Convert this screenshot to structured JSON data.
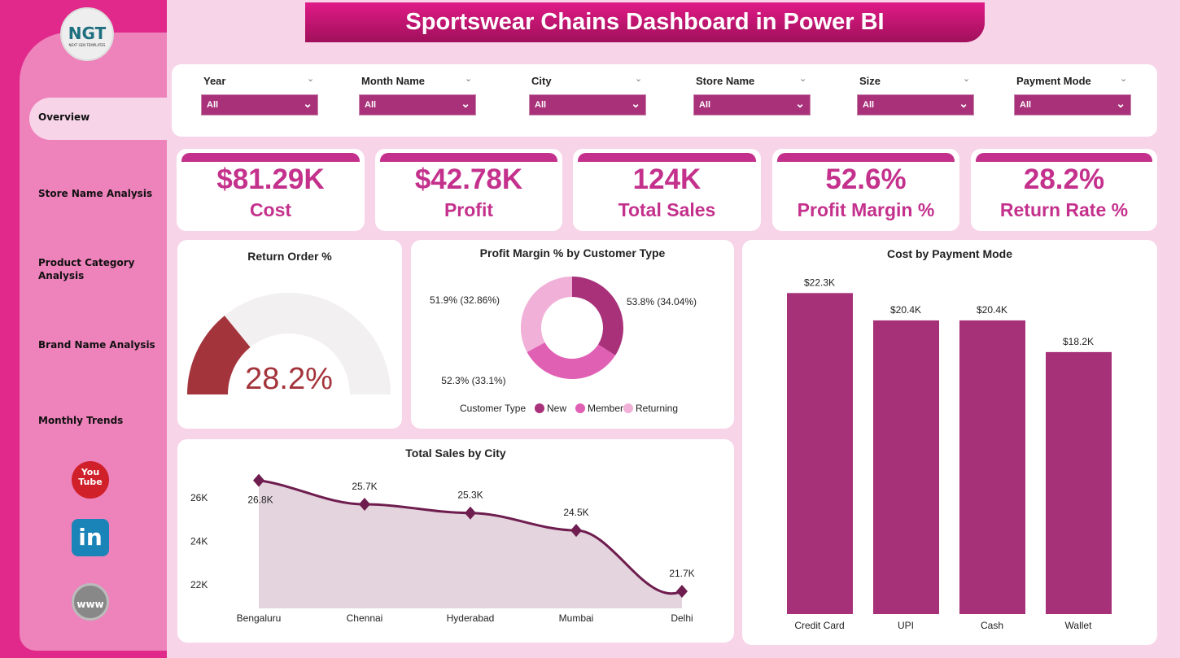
{
  "title": "Sportswear Chains Dashboard in Power BI",
  "logo": {
    "text": "NGT",
    "subtext": "NEXT GEN TEMPLATES"
  },
  "sidebar": {
    "items": [
      {
        "label": "Overview",
        "active": true
      },
      {
        "label": "Store Name Analysis"
      },
      {
        "label": "Product Category Analysis"
      },
      {
        "label": "Brand Name Analysis"
      },
      {
        "label": "Monthly Trends"
      }
    ],
    "social": [
      {
        "icon": "youtube-icon",
        "text": "You Tube"
      },
      {
        "icon": "linkedin-icon",
        "text": "in"
      },
      {
        "icon": "globe-icon",
        "text": "www"
      }
    ]
  },
  "filters": [
    {
      "label": "Year",
      "value": "All"
    },
    {
      "label": "Month Name",
      "value": "All"
    },
    {
      "label": "City",
      "value": "All"
    },
    {
      "label": "Store Name",
      "value": "All"
    },
    {
      "label": "Size",
      "value": "All"
    },
    {
      "label": "Payment Mode",
      "value": "All"
    }
  ],
  "kpis": [
    {
      "value": "$81.29K",
      "label": "Cost"
    },
    {
      "value": "$42.78K",
      "label": "Profit"
    },
    {
      "value": "124K",
      "label": "Total Sales"
    },
    {
      "value": "52.6%",
      "label": "Profit Margin %"
    },
    {
      "value": "28.2%",
      "label": "Return Rate %"
    }
  ],
  "colors": {
    "accent": "#c4318c",
    "bar": "#a63179",
    "line": "#6e1d4e",
    "gauge": "#a4343c"
  },
  "chart_data": [
    {
      "type": "gauge",
      "title": "Return Order %",
      "value": 28.2,
      "max": 100,
      "label": "28.2%"
    },
    {
      "type": "pie",
      "title": "Profit Margin % by Customer Type",
      "legend_title": "Customer Type",
      "categories": [
        "New",
        "Member",
        "Returning"
      ],
      "values": [
        53.8,
        52.3,
        51.9
      ],
      "shares": [
        34.04,
        33.1,
        32.86
      ],
      "labels": [
        "53.8% (34.04%)",
        "52.3% (33.1%)",
        "51.9% (32.86%)"
      ],
      "colors": [
        "#a8317a",
        "#e060b4",
        "#f0b0d8"
      ],
      "legend": "bottom"
    },
    {
      "type": "area",
      "title": "Total Sales by City",
      "categories": [
        "Bengaluru",
        "Chennai",
        "Hyderabad",
        "Mumbai",
        "Delhi"
      ],
      "values": [
        26.8,
        25.7,
        25.3,
        24.5,
        21.7
      ],
      "labels": [
        "26.8K",
        "25.7K",
        "25.3K",
        "24.5K",
        "21.7K"
      ],
      "yticks": [
        "26K",
        "24K",
        "22K"
      ],
      "ytick_values": [
        26,
        24,
        22
      ],
      "unit": "K"
    },
    {
      "type": "bar",
      "title": "Cost by Payment Mode",
      "categories": [
        "Credit Card",
        "UPI",
        "Cash",
        "Wallet"
      ],
      "values": [
        22.3,
        20.4,
        20.4,
        18.2
      ],
      "labels": [
        "$22.3K",
        "$20.4K",
        "$20.4K",
        "$18.2K"
      ],
      "unit": "K"
    }
  ]
}
